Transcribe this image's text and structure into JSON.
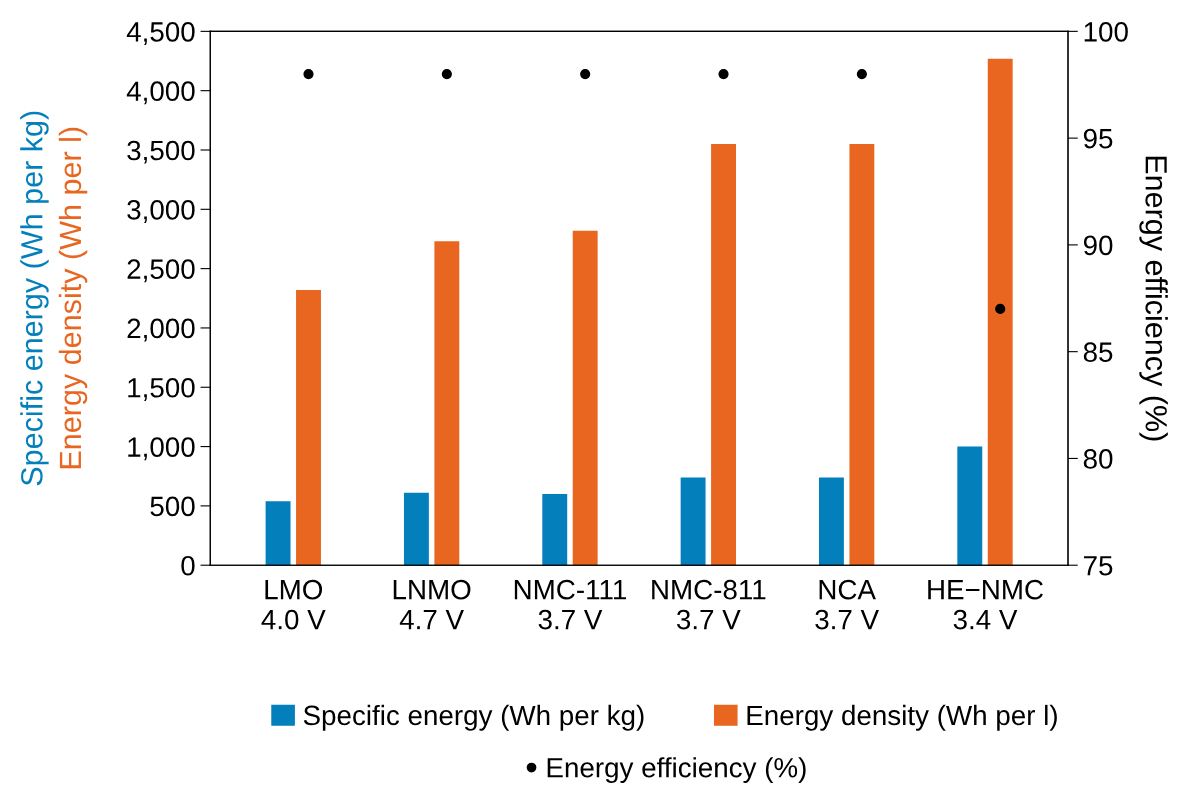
{
  "chart_data": {
    "type": "bar",
    "categories": [
      "LMO\n4.0 V",
      "LNMO\n4.7 V",
      "NMC-111\n3.7 V",
      "NMC-811\n3.7 V",
      "NCA\n3.7 V",
      "HE−NMC\n3.4 V"
    ],
    "series": [
      {
        "name": "Specific energy (Wh per kg)",
        "color": "#037fbb",
        "values": [
          540,
          610,
          600,
          740,
          740,
          1000
        ]
      },
      {
        "name": "Energy density (Wh per l)",
        "color": "#e8661f",
        "values": [
          2320,
          2730,
          2820,
          3550,
          3550,
          4270
        ]
      },
      {
        "name": "Energy efficiency (%)",
        "type": "scatter",
        "axis": "y2",
        "color": "#000000",
        "values": [
          98.0,
          98.0,
          98.0,
          98.0,
          98.0,
          87.0
        ]
      }
    ],
    "ylabel": "Specific energy (Wh per kg)\nEnergy density (Wh per l)",
    "y2label": "Energy efficiency (%)",
    "ylim": [
      0,
      4500
    ],
    "yticks": [
      0,
      500,
      {
        "value": 1000,
        "label": "1,000"
      },
      {
        "value": 1500,
        "label": "1,500"
      },
      {
        "value": 2000,
        "label": "2,000"
      },
      {
        "value": 2500,
        "label": "2,500"
      },
      {
        "value": 3000,
        "label": "3,000"
      },
      {
        "value": 3500,
        "label": "3,500"
      },
      {
        "value": 4000,
        "label": "4,000"
      },
      {
        "value": 4500,
        "label": "4,500"
      }
    ],
    "y2lim": [
      75,
      100
    ],
    "y2ticks": [
      75,
      80,
      85,
      90,
      95,
      100
    ],
    "marker": "circle",
    "grid": false,
    "legend": "bottom"
  }
}
